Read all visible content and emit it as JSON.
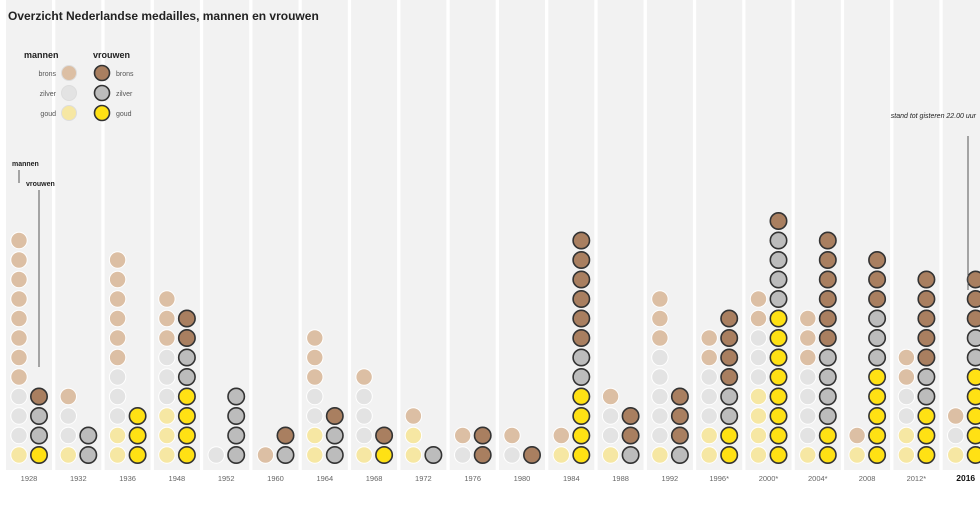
{
  "chart_data": {
    "type": "dot-matrix",
    "title": "Overzicht Nederlandse medailles, mannen en vrouwen",
    "legend": {
      "groups": [
        {
          "key": "m",
          "name": "mannen"
        },
        {
          "key": "v",
          "name": "vrouwen"
        }
      ],
      "medals": [
        "brons",
        "zilver",
        "goud"
      ]
    },
    "colors": {
      "m": {
        "goud": "#f6e7a3",
        "zilver": "#e3e3e3",
        "brons": "#dcbfa4"
      },
      "v": {
        "goud": "#ffe114",
        "zilver": "#bcbcbc",
        "brons": "#a97f60"
      },
      "stroke_m": "#ffffff",
      "stroke_v": "#333333",
      "column_bg": "#f2f2f2"
    },
    "column_labels": {
      "m": "mannen",
      "v": "vrouwen"
    },
    "annotation": "stand tot gisteren 22.00 uur",
    "years": [
      {
        "label": "1928",
        "m": [
          1,
          3,
          8
        ],
        "v": [
          1,
          2,
          1
        ],
        "bold": false
      },
      {
        "label": "1932",
        "m": [
          1,
          2,
          1
        ],
        "v": [
          0,
          2,
          0
        ],
        "bold": false
      },
      {
        "label": "1936",
        "m": [
          2,
          3,
          6
        ],
        "v": [
          3,
          0,
          0
        ],
        "bold": false
      },
      {
        "label": "1948",
        "m": [
          3,
          3,
          3
        ],
        "v": [
          4,
          2,
          2
        ],
        "bold": false
      },
      {
        "label": "1952",
        "m": [
          0,
          1,
          0
        ],
        "v": [
          0,
          4,
          0
        ],
        "bold": false
      },
      {
        "label": "1960",
        "m": [
          0,
          0,
          1
        ],
        "v": [
          0,
          1,
          1
        ],
        "bold": false
      },
      {
        "label": "1964",
        "m": [
          2,
          2,
          3
        ],
        "v": [
          0,
          2,
          1
        ],
        "bold": false
      },
      {
        "label": "1968",
        "m": [
          1,
          3,
          1
        ],
        "v": [
          1,
          0,
          1
        ],
        "bold": false
      },
      {
        "label": "1972",
        "m": [
          2,
          0,
          1
        ],
        "v": [
          0,
          1,
          0
        ],
        "bold": false
      },
      {
        "label": "1976",
        "m": [
          0,
          1,
          1
        ],
        "v": [
          0,
          0,
          2
        ],
        "bold": false
      },
      {
        "label": "1980",
        "m": [
          0,
          1,
          1
        ],
        "v": [
          0,
          0,
          1
        ],
        "bold": false
      },
      {
        "label": "1984",
        "m": [
          1,
          0,
          1
        ],
        "v": [
          4,
          2,
          6
        ],
        "bold": false
      },
      {
        "label": "1988",
        "m": [
          1,
          2,
          1
        ],
        "v": [
          0,
          1,
          2
        ],
        "bold": false
      },
      {
        "label": "1992",
        "m": [
          1,
          5,
          3
        ],
        "v": [
          0,
          1,
          3
        ],
        "bold": false
      },
      {
        "label": "1996*",
        "m": [
          2,
          3,
          2
        ],
        "v": [
          2,
          2,
          4
        ],
        "bold": false
      },
      {
        "label": "2000*",
        "m": [
          4,
          3,
          2
        ],
        "v": [
          8,
          4,
          1
        ],
        "bold": false
      },
      {
        "label": "2004*",
        "m": [
          1,
          4,
          3
        ],
        "v": [
          2,
          4,
          6
        ],
        "bold": false
      },
      {
        "label": "2008",
        "m": [
          1,
          0,
          1
        ],
        "v": [
          5,
          3,
          3
        ],
        "bold": false
      },
      {
        "label": "2012*",
        "m": [
          2,
          2,
          2
        ],
        "v": [
          3,
          2,
          5
        ],
        "bold": false
      },
      {
        "label": "2016",
        "m": [
          1,
          1,
          1
        ],
        "v": [
          5,
          2,
          3
        ],
        "bold": true
      }
    ]
  }
}
